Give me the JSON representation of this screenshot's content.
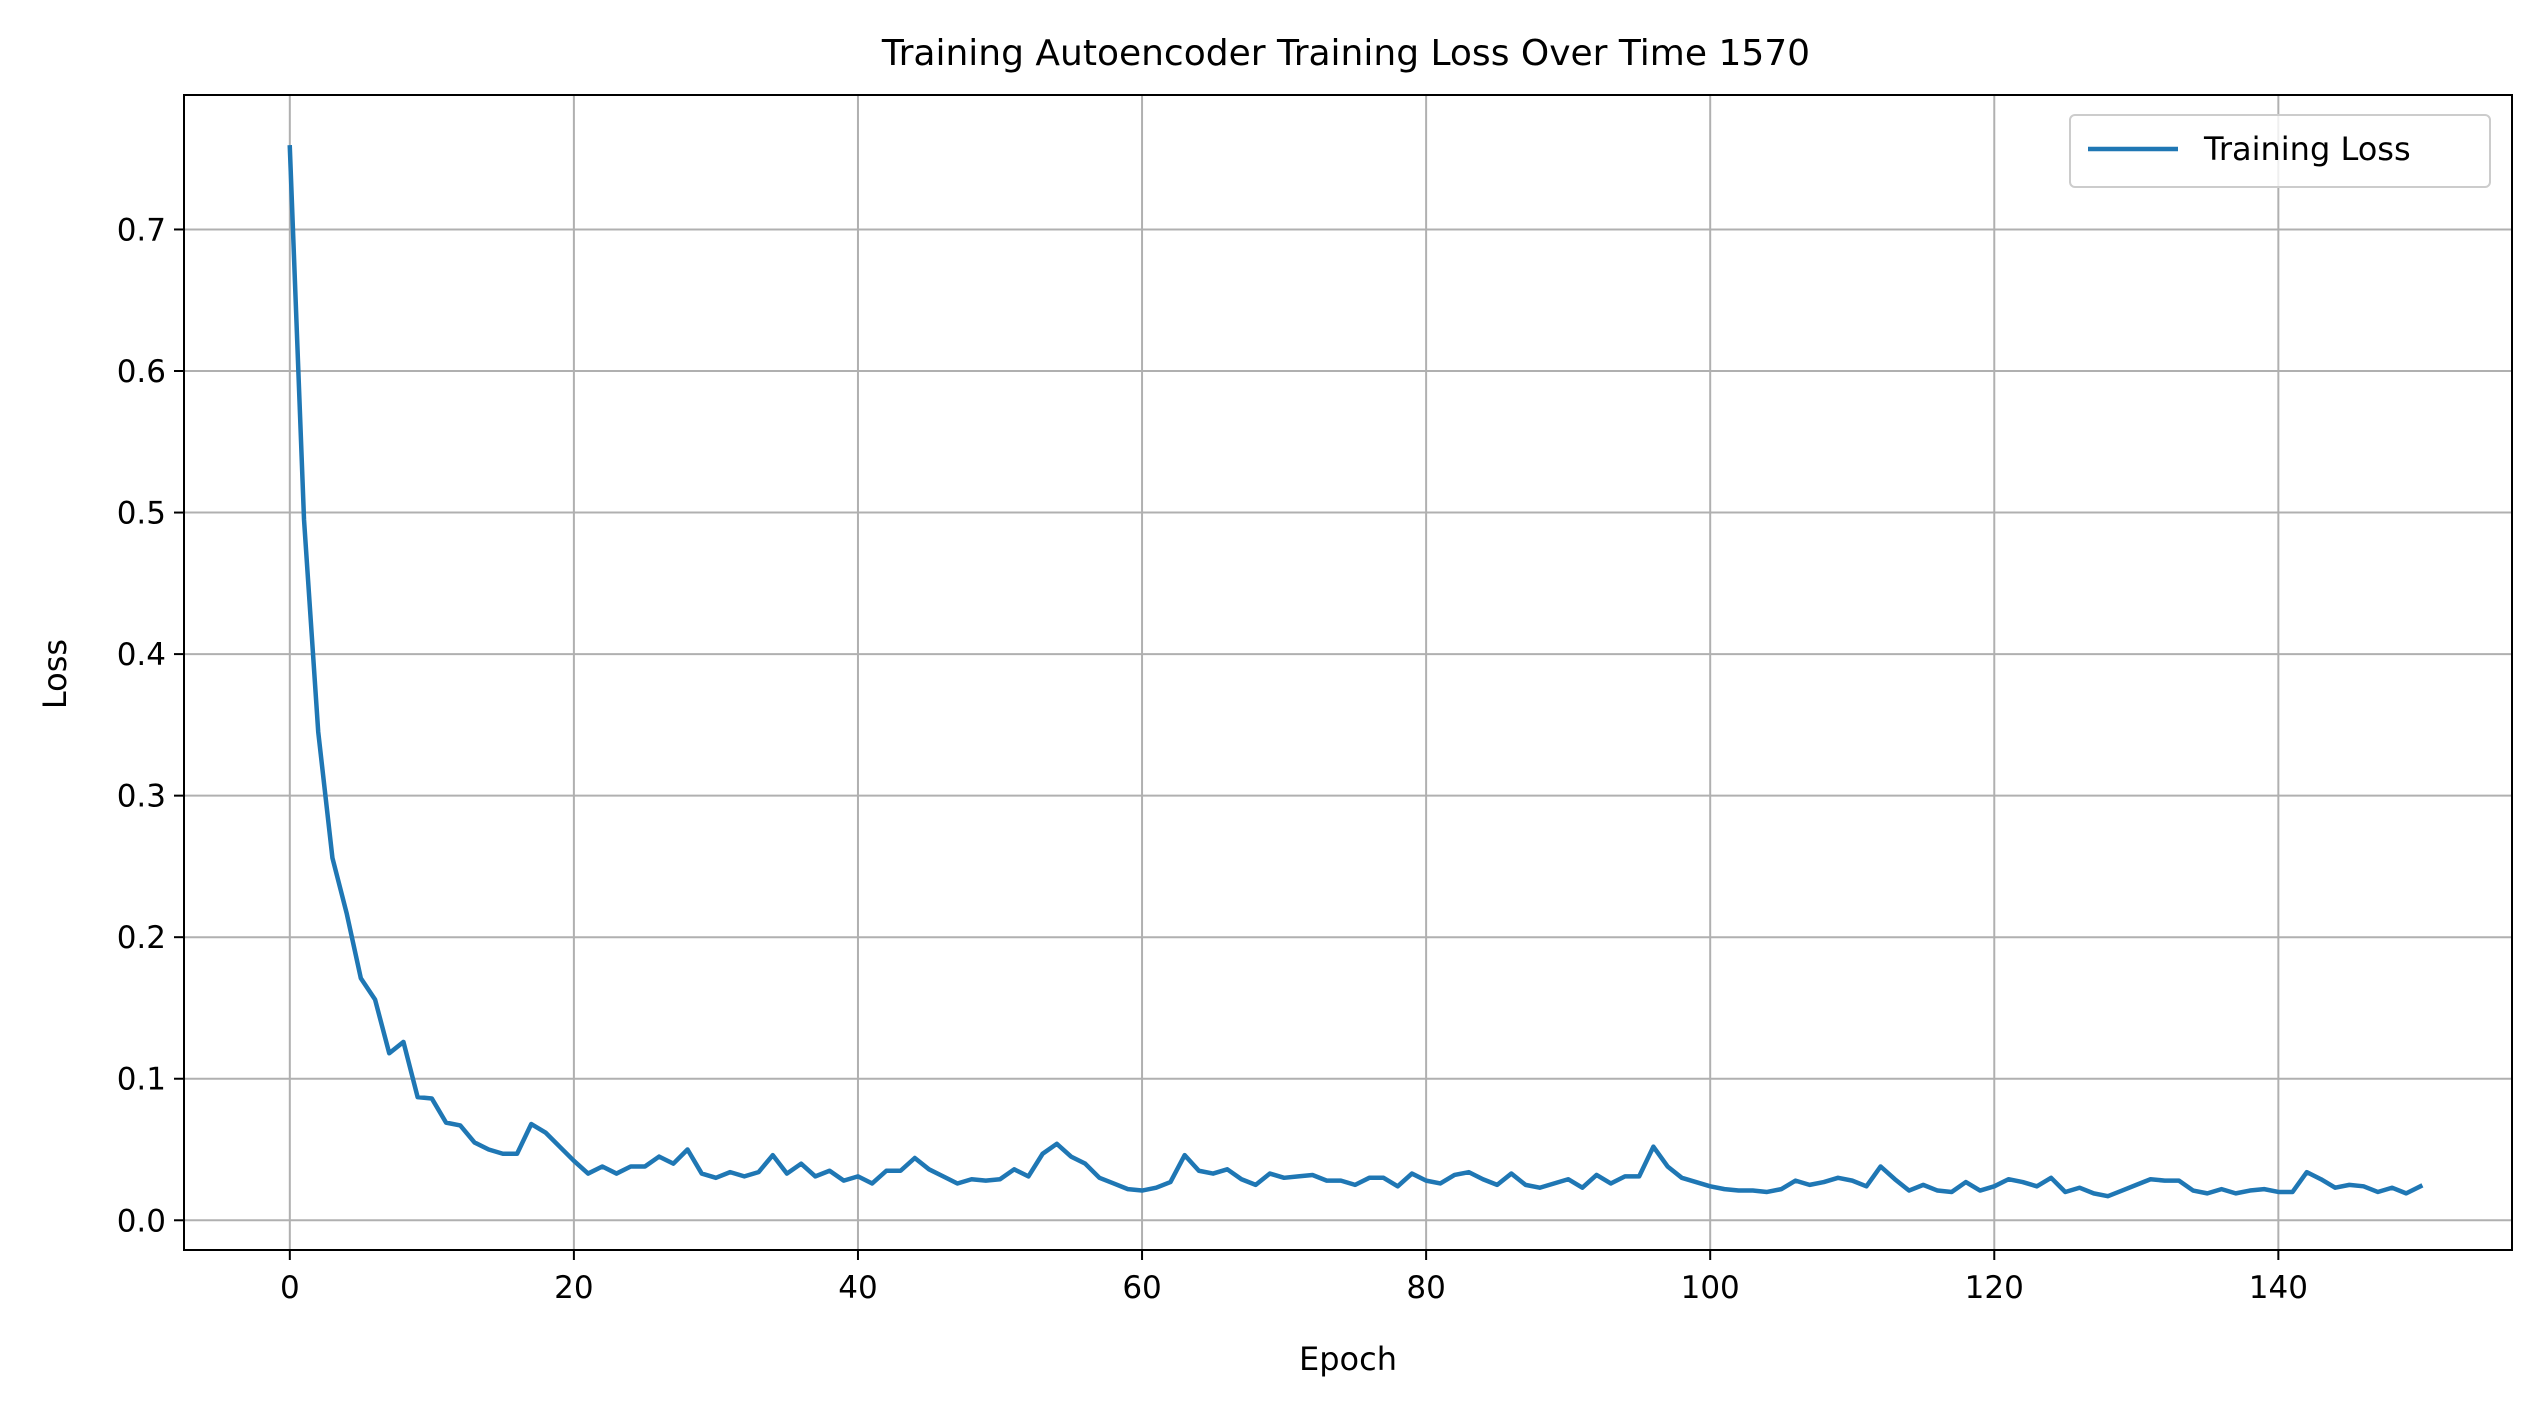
{
  "chart_data": {
    "type": "line",
    "title": "Training Autoencoder Training Loss Over Time 1570",
    "xlabel": "Epoch",
    "ylabel": "Loss",
    "xlim": [
      -7.45,
      156.45
    ],
    "ylim": [
      -0.021,
      0.795
    ],
    "xticks": [
      0,
      20,
      40,
      60,
      80,
      100,
      120,
      140
    ],
    "yticks": [
      0.0,
      0.1,
      0.2,
      0.3,
      0.4,
      0.5,
      0.6,
      0.7
    ],
    "xtick_labels": [
      "0",
      "20",
      "40",
      "60",
      "80",
      "100",
      "120",
      "140"
    ],
    "ytick_labels": [
      "0.0",
      "0.1",
      "0.2",
      "0.3",
      "0.4",
      "0.5",
      "0.6",
      "0.7"
    ],
    "grid": true,
    "legend_position": "top-right",
    "series": [
      {
        "name": "Training Loss",
        "color": "#1f77b4",
        "x_start": 0,
        "x_step": 1,
        "values": [
          0.758,
          0.495,
          0.345,
          0.256,
          0.217,
          0.171,
          0.156,
          0.118,
          0.126,
          0.087,
          0.086,
          0.069,
          0.067,
          0.055,
          0.05,
          0.047,
          0.047,
          0.068,
          0.062,
          0.052,
          0.042,
          0.033,
          0.038,
          0.033,
          0.038,
          0.038,
          0.045,
          0.04,
          0.05,
          0.033,
          0.03,
          0.034,
          0.031,
          0.034,
          0.046,
          0.033,
          0.04,
          0.031,
          0.035,
          0.028,
          0.031,
          0.026,
          0.035,
          0.035,
          0.044,
          0.036,
          0.031,
          0.026,
          0.029,
          0.028,
          0.029,
          0.036,
          0.031,
          0.047,
          0.054,
          0.045,
          0.04,
          0.03,
          0.026,
          0.022,
          0.021,
          0.023,
          0.027,
          0.046,
          0.035,
          0.033,
          0.036,
          0.029,
          0.025,
          0.033,
          0.03,
          0.031,
          0.032,
          0.028,
          0.028,
          0.025,
          0.03,
          0.03,
          0.024,
          0.033,
          0.028,
          0.026,
          0.032,
          0.034,
          0.029,
          0.025,
          0.033,
          0.025,
          0.023,
          0.026,
          0.029,
          0.023,
          0.032,
          0.026,
          0.031,
          0.031,
          0.052,
          0.038,
          0.03,
          0.027,
          0.024,
          0.022,
          0.021,
          0.021,
          0.02,
          0.022,
          0.028,
          0.025,
          0.027,
          0.03,
          0.028,
          0.024,
          0.038,
          0.029,
          0.021,
          0.025,
          0.021,
          0.02,
          0.027,
          0.021,
          0.024,
          0.029,
          0.027,
          0.024,
          0.03,
          0.02,
          0.023,
          0.019,
          0.017,
          0.021,
          0.025,
          0.029,
          0.028,
          0.028,
          0.021,
          0.019,
          0.022,
          0.019,
          0.021,
          0.022,
          0.02,
          0.02,
          0.034,
          0.029,
          0.023,
          0.025,
          0.024,
          0.02,
          0.023,
          0.019,
          0.024
        ]
      }
    ]
  }
}
